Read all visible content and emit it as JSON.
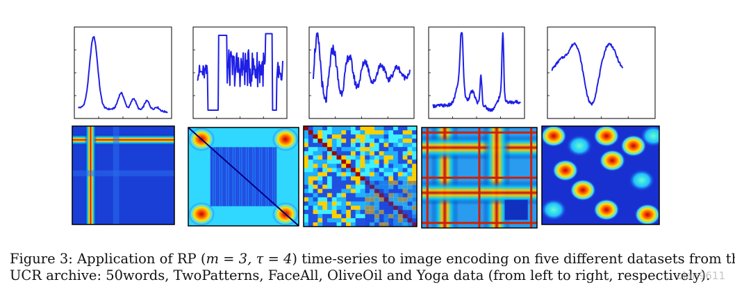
{
  "figure": {
    "number": "Figure 3",
    "caption_line1_prefix": "Figure 3: Application of RP (",
    "caption_line1_math": "m = 3, τ = 4",
    "caption_line1_suffix": ") time-series to image encoding on five different datasets from the",
    "caption_line2": "UCR archive: 50words, TwoPatterns, FaceAll, OliveOil and Yoga data (from left to right, respectively).",
    "datasets": [
      "50words",
      "TwoPatterns",
      "FaceAll",
      "OliveOil",
      "Yoga"
    ],
    "line_color": "#1f1fe6",
    "colormap": "jet"
  },
  "watermark": "olan9611"
}
